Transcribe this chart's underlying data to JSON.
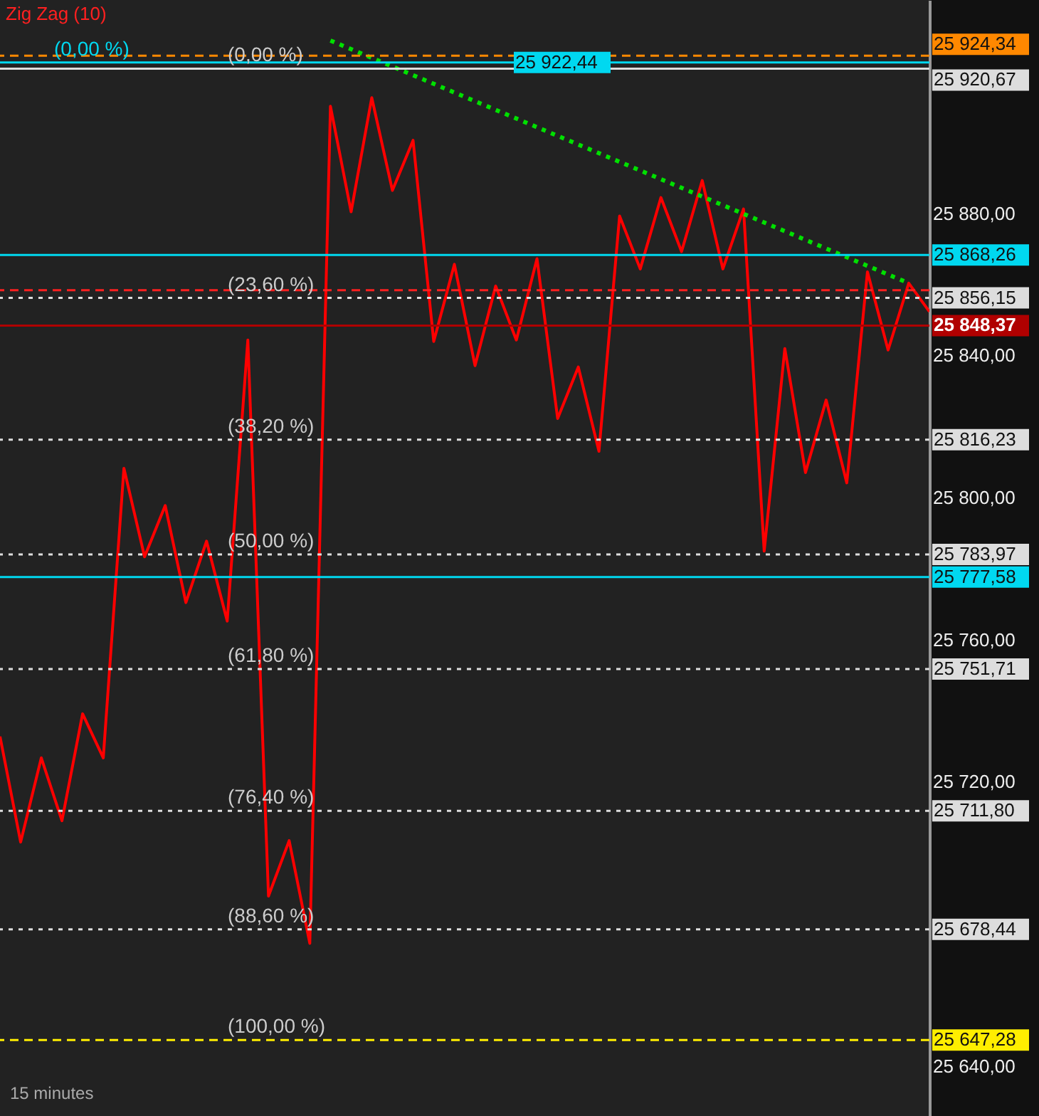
{
  "chart_data": {
    "type": "line",
    "categories": [
      null,
      null,
      null,
      null,
      null,
      null,
      null,
      null,
      null,
      null,
      null,
      null,
      null,
      null,
      null,
      null,
      null,
      null,
      null,
      null,
      null,
      null,
      null,
      null,
      null,
      null,
      null,
      null,
      null,
      null,
      null,
      null,
      null,
      null,
      null,
      null,
      null,
      null,
      null,
      null,
      null,
      null,
      null,
      null,
      null,
      null
    ],
    "series": [
      {
        "color": "#ff0000",
        "line_style": "solid",
        "values": [
          25732.7,
          25703.0,
          25726.7,
          25709.0,
          25739.1,
          25726.7,
          25808.2,
          25783.3,
          25797.7,
          25770.4,
          25787.7,
          25765.2,
          25844.3,
          25687.8,
          25703.4,
          25674.5,
          25910.1,
          25880.4,
          25912.5,
          25886.4,
          25900.5,
          25843.9,
          25865.6,
          25837.1,
          25859.5,
          25844.3,
          25867.2,
          25822.2,
          25836.7,
          25813.0,
          25879.2,
          25864.3,
          25884.4,
          25869.2,
          25889.2,
          25864.3,
          25881.2,
          25784.9,
          25841.9,
          25807.0,
          25827.4,
          25804.1,
          25863.5,
          25841.5,
          25860.3,
          25852.3
        ]
      },
      {
        "color": "#00e000",
        "line_style": "dotted",
        "values": [
          null,
          null,
          null,
          null,
          null,
          null,
          null,
          null,
          null,
          null,
          null,
          null,
          null,
          null,
          null,
          null,
          25928.6,
          null,
          null,
          null,
          null,
          null,
          null,
          null,
          null,
          null,
          null,
          null,
          null,
          null,
          null,
          null,
          null,
          null,
          null,
          null,
          null,
          null,
          null,
          null,
          null,
          null,
          null,
          null,
          25860.3,
          null
        ]
      }
    ],
    "ylim": [
      25625.9,
      25940
    ],
    "yticks": [
      {
        "value": 25640,
        "label": "25 640,00"
      },
      {
        "value": 25720,
        "label": "25 720,00"
      },
      {
        "value": 25760,
        "label": "25 760,00"
      },
      {
        "value": 25800,
        "label": "25 800,00"
      },
      {
        "value": 25840,
        "label": "25 840,00"
      },
      {
        "value": 25880,
        "label": "25 880,00"
      }
    ],
    "tick_labels": "y",
    "grid": false,
    "ref_lines": [
      {
        "axis": "y",
        "value": 25924.34,
        "label": "25 924,34",
        "color": "#ff8800",
        "line_style": "dashed"
      },
      {
        "axis": "y",
        "value": 25922.44,
        "label": "25 922,44",
        "color": "#00d8f0",
        "line_style": "solid"
      },
      {
        "axis": "y",
        "value": 25920.67,
        "label": "25 920,67",
        "color": "#dddddd",
        "line_style": "solid"
      },
      {
        "axis": "y",
        "value": 25868.26,
        "label": "25 868,26",
        "color": "#00d8f0",
        "line_style": "solid"
      },
      {
        "axis": "y",
        "value": 25858.3,
        "label": null,
        "color": "#ff2020",
        "line_style": "dashed"
      },
      {
        "axis": "y",
        "value": 25856.15,
        "label": "25 856,15",
        "color": "#dddddd",
        "line_style": "dotted"
      },
      {
        "axis": "y",
        "value": 25848.37,
        "label": "25 848,37",
        "color": "#b00000",
        "line_style": "solid"
      },
      {
        "axis": "y",
        "value": 25816.23,
        "label": "25 816,23",
        "color": "#dddddd",
        "line_style": "dotted"
      },
      {
        "axis": "y",
        "value": 25783.97,
        "label": "25 783,97",
        "color": "#dddddd",
        "line_style": "dotted"
      },
      {
        "axis": "y",
        "value": 25777.58,
        "label": "25 777,58",
        "color": "#00d8f0",
        "line_style": "solid"
      },
      {
        "axis": "y",
        "value": 25751.71,
        "label": "25 751,71",
        "color": "#dddddd",
        "line_style": "dotted"
      },
      {
        "axis": "y",
        "value": 25711.8,
        "label": "25 711,80",
        "color": "#dddddd",
        "line_style": "dotted"
      },
      {
        "axis": "y",
        "value": 25678.44,
        "label": "25 678,44",
        "color": "#dddddd",
        "line_style": "dotted"
      },
      {
        "axis": "y",
        "value": 25647.28,
        "label": "25 647,28",
        "color": "#ffee00",
        "line_style": "dashed"
      }
    ],
    "annotations": [
      "Zig Zag (10)",
      "15 minutes",
      {
        "text": "(0,00 %)",
        "y": 25922.44
      },
      {
        "text": "(0,00 %)",
        "y": 25920.67
      },
      {
        "text": "(23,60 %)",
        "y": 25856.15
      },
      {
        "text": "(38,20 %)",
        "y": 25816.23
      },
      {
        "text": "(50,00 %)",
        "y": 25783.97
      },
      {
        "text": "(61,80 %)",
        "y": 25751.71
      },
      {
        "text": "(76,40 %)",
        "y": 25711.8
      },
      {
        "text": "(88,60 %)",
        "y": 25678.44
      },
      {
        "text": "(100,00 %)",
        "y": 25647.28
      }
    ]
  }
}
